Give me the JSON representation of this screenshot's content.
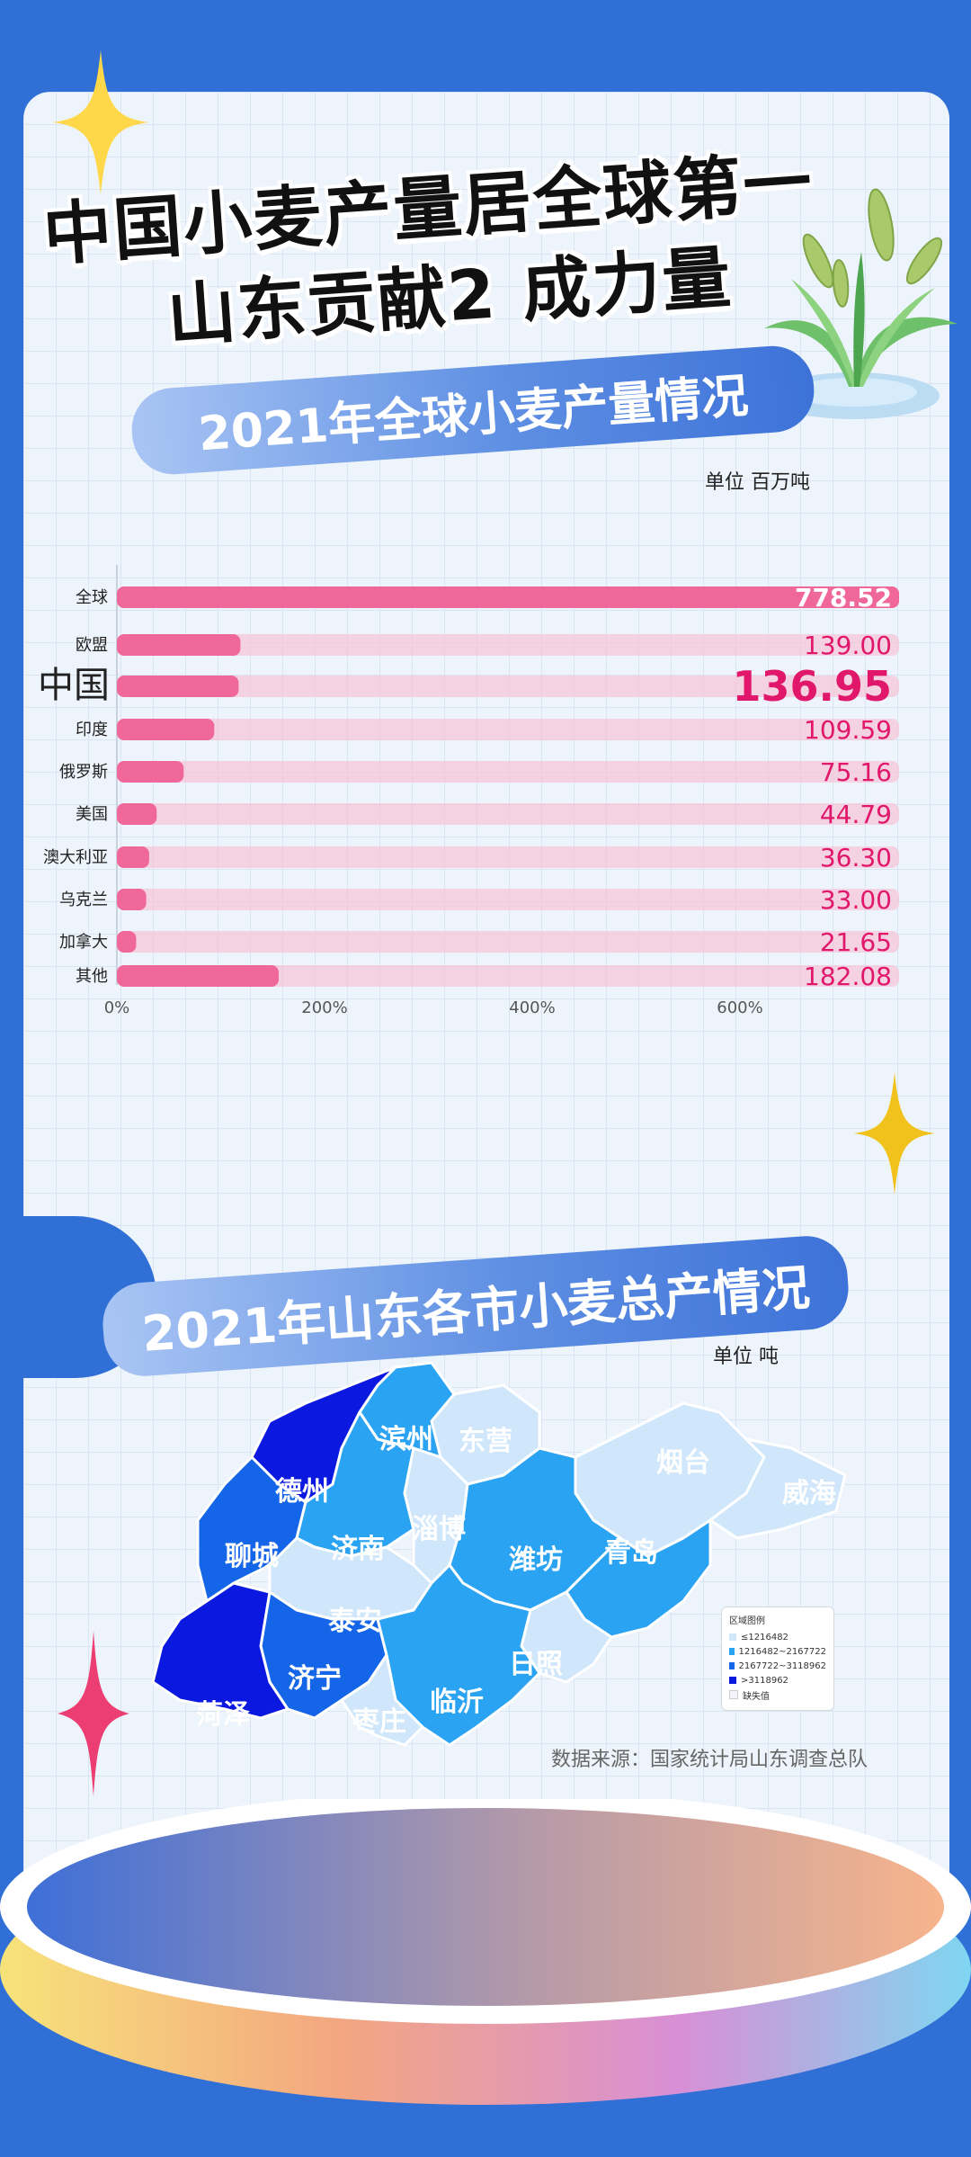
{
  "titles": {
    "line1": "中国小麦产量居全球第一",
    "line2": "山东贡献2 成力量",
    "ribbon1": "2021年全球小麦产量情况",
    "ribbon2": "2021年山东各市小麦总产情况"
  },
  "chart_data": {
    "type": "bar",
    "orientation": "horizontal",
    "unit": "单位 百万吨",
    "categories": [
      "全球",
      "欧盟",
      "中国",
      "印度",
      "俄罗斯",
      "美国",
      "澳大利亚",
      "乌克兰",
      "加拿大",
      "其他"
    ],
    "values": [
      778.52,
      139.0,
      136.95,
      109.59,
      75.16,
      44.79,
      36.3,
      33.0,
      21.65,
      182.08
    ],
    "value_labels": [
      "778.52",
      "139.00",
      "136.95",
      "109.59",
      "75.16",
      "44.79",
      "36.30",
      "33.00",
      "21.65",
      "182.08"
    ],
    "highlight": "中国",
    "x_ticks": [
      "0%",
      "200%",
      "400%",
      "600%"
    ],
    "bar_color": "#f0679a",
    "track_color": "#f6c3d6",
    "label_color": "#e0176a"
  },
  "map": {
    "unit": "单位 吨",
    "cities": [
      "滨州",
      "东营",
      "德州",
      "烟台",
      "威海",
      "聊城",
      "济南",
      "淄博",
      "潍坊",
      "青岛",
      "泰安",
      "济宁",
      "日照",
      "菏泽",
      "临沂",
      "枣庄"
    ],
    "legend_title": "区域图例",
    "legend": [
      {
        "label": "≤1216482",
        "color": "#cfe6fb"
      },
      {
        "label": "1216482~2167722",
        "color": "#2aa3f3"
      },
      {
        "label": "2167722~3118962",
        "color": "#1565e8"
      },
      {
        "label": ">3118962",
        "color": "#0a18e0"
      },
      {
        "label": "缺失值",
        "color": "#f2f4f7"
      }
    ]
  },
  "source": "数据来源：国家统计局山东调查总队"
}
